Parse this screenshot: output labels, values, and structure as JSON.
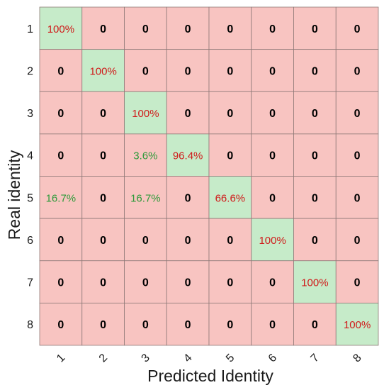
{
  "chart_data": {
    "type": "heatmap",
    "title": "",
    "xlabel": "Predicted Identity",
    "ylabel": "Real identity",
    "x_categories": [
      "1",
      "2",
      "3",
      "4",
      "5",
      "6",
      "7",
      "8"
    ],
    "y_categories": [
      "1",
      "2",
      "3",
      "4",
      "5",
      "6",
      "7",
      "8"
    ],
    "cells": [
      [
        "100%",
        "0",
        "0",
        "0",
        "0",
        "0",
        "0",
        "0"
      ],
      [
        "0",
        "100%",
        "0",
        "0",
        "0",
        "0",
        "0",
        "0"
      ],
      [
        "0",
        "0",
        "100%",
        "0",
        "0",
        "0",
        "0",
        "0"
      ],
      [
        "0",
        "0",
        "3.6%",
        "96.4%",
        "0",
        "0",
        "0",
        "0"
      ],
      [
        "16.7%",
        "0",
        "16.7%",
        "0",
        "66.6%",
        "0",
        "0",
        "0"
      ],
      [
        "0",
        "0",
        "0",
        "0",
        "0",
        "100%",
        "0",
        "0"
      ],
      [
        "0",
        "0",
        "0",
        "0",
        "0",
        "0",
        "100%",
        "0"
      ],
      [
        "0",
        "0",
        "0",
        "0",
        "0",
        "0",
        "0",
        "100%"
      ]
    ],
    "values": [
      [
        100,
        0,
        0,
        0,
        0,
        0,
        0,
        0
      ],
      [
        0,
        100,
        0,
        0,
        0,
        0,
        0,
        0
      ],
      [
        0,
        0,
        100,
        0,
        0,
        0,
        0,
        0
      ],
      [
        0,
        0,
        3.6,
        96.4,
        0,
        0,
        0,
        0
      ],
      [
        16.7,
        0,
        16.7,
        0,
        66.6,
        0,
        0,
        0
      ],
      [
        0,
        0,
        0,
        0,
        0,
        100,
        0,
        0
      ],
      [
        0,
        0,
        0,
        0,
        0,
        0,
        100,
        0
      ],
      [
        0,
        0,
        0,
        0,
        0,
        0,
        0,
        100
      ]
    ],
    "colors": {
      "diagonal_fill": "#c6ebc9",
      "off_diagonal_fill": "#f8c4c1",
      "grid_line": "#8f7a78",
      "text_diagonal": "#d01a1a",
      "text_off_diagonal_nonzero": "#2e9a3a",
      "text_zero": "#000000",
      "axis_text": "#1a1a1a"
    }
  }
}
